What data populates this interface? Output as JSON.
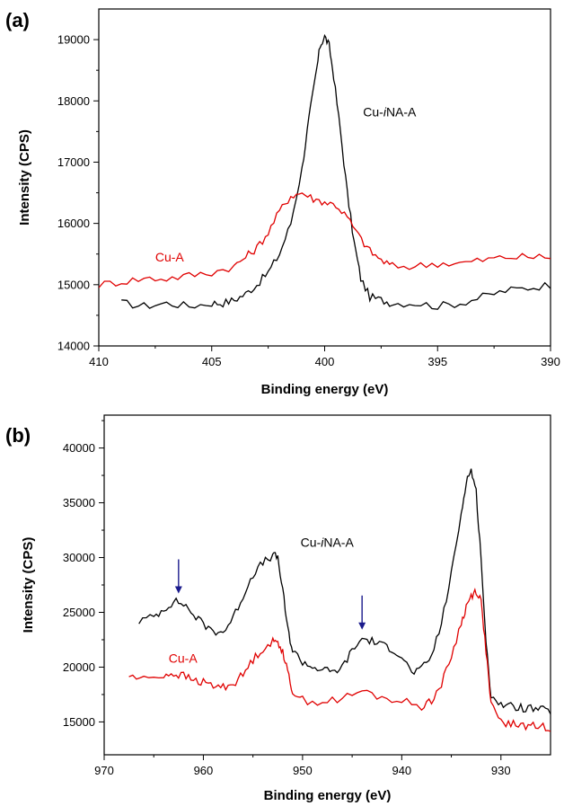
{
  "chart_data": [
    {
      "type": "line",
      "panel_label": "(a)",
      "xlabel": "Binding energy (eV)",
      "ylabel": "Intensity (CPS)",
      "xlim": [
        410,
        390
      ],
      "ylim": [
        14000,
        19500
      ],
      "x_reversed": true,
      "xticks": [
        410,
        405,
        400,
        395,
        390
      ],
      "yticks": [
        14000,
        15000,
        16000,
        17000,
        18000,
        19000
      ],
      "grid": false,
      "colors": {
        "Cu-iNA-A": "#000000",
        "Cu-A": "#e00000"
      },
      "annotations": [
        {
          "text": "Cu-iNA-A",
          "color": "#000000",
          "x": 398.3,
          "y": 17750
        },
        {
          "text": "Cu-A",
          "color": "#e00000",
          "x": 407.5,
          "y": 15380
        }
      ],
      "series": [
        {
          "name": "Cu-iNA-A",
          "x": [
            409,
            408,
            407,
            406,
            405,
            404.5,
            404,
            403.5,
            403,
            402.5,
            402,
            401.5,
            401,
            400.7,
            400.4,
            400.2,
            400,
            399.8,
            399.6,
            399.3,
            399,
            398.7,
            398.4,
            398,
            397.5,
            397,
            396,
            395,
            394,
            393,
            392,
            391,
            390
          ],
          "y": [
            14700,
            14650,
            14700,
            14650,
            14700,
            14700,
            14750,
            14850,
            15000,
            15200,
            15500,
            16000,
            16900,
            17700,
            18400,
            18900,
            19050,
            18900,
            18400,
            17500,
            16500,
            15700,
            15100,
            14800,
            14750,
            14700,
            14700,
            14650,
            14700,
            14800,
            14900,
            14950,
            15000
          ]
        },
        {
          "name": "Cu-A",
          "x": [
            410,
            409,
            408,
            407,
            406,
            405,
            404,
            403.5,
            403,
            402.5,
            402,
            401.5,
            401,
            400.5,
            400,
            399.5,
            399,
            398.5,
            398,
            397.5,
            397,
            396,
            395,
            394,
            393,
            392,
            391,
            390
          ],
          "y": [
            15000,
            15050,
            15100,
            15100,
            15150,
            15200,
            15300,
            15450,
            15600,
            15850,
            16200,
            16450,
            16500,
            16400,
            16350,
            16300,
            16100,
            15800,
            15550,
            15400,
            15300,
            15300,
            15350,
            15350,
            15400,
            15450,
            15450,
            15450
          ]
        }
      ]
    },
    {
      "type": "line",
      "panel_label": "(b)",
      "xlabel": "Binding energy (eV)",
      "ylabel": "Intensity (CPS)",
      "xlim": [
        970,
        925
      ],
      "ylim": [
        12000,
        43000
      ],
      "x_reversed": true,
      "xticks": [
        970,
        960,
        950,
        940,
        930
      ],
      "yticks": [
        15000,
        20000,
        25000,
        30000,
        35000,
        40000
      ],
      "grid": false,
      "colors": {
        "Cu-iNA-A": "#000000",
        "Cu-A": "#e00000",
        "arrow": "#1a1a8c"
      },
      "annotations": [
        {
          "text": "Cu-iNA-A",
          "color": "#000000",
          "x": 950.2,
          "y": 31000
        },
        {
          "text": "Cu-A",
          "color": "#e00000",
          "x": 963.5,
          "y": 20400
        }
      ],
      "arrows": [
        {
          "x": 962.5
        },
        {
          "x": 944
        }
      ],
      "series": [
        {
          "name": "Cu-iNA-A",
          "x": [
            966.5,
            965,
            964,
            963,
            962,
            961,
            960,
            959,
            958,
            957,
            956,
            955,
            954,
            953,
            952.5,
            952,
            951.5,
            951,
            950,
            949,
            948,
            947,
            946,
            945,
            944,
            943,
            942,
            941,
            940,
            939,
            938,
            937,
            936,
            935,
            934,
            933.5,
            933,
            932.5,
            932,
            931.5,
            931,
            930,
            929,
            928,
            927,
            926,
            925
          ],
          "y": [
            24200,
            24600,
            25300,
            26000,
            25800,
            24800,
            23900,
            23300,
            23200,
            24500,
            26500,
            28500,
            29500,
            30200,
            30000,
            27000,
            23500,
            21500,
            20500,
            20000,
            19800,
            19500,
            20000,
            21500,
            22600,
            22400,
            22000,
            21700,
            21000,
            19500,
            19800,
            21000,
            24000,
            28500,
            34000,
            37000,
            38000,
            36000,
            30000,
            22000,
            17500,
            16600,
            16400,
            16300,
            16200,
            16100,
            16000
          ]
        },
        {
          "name": "Cu-A",
          "x": [
            967.5,
            966,
            964,
            963,
            962,
            961,
            960,
            959,
            958,
            957,
            956,
            955,
            954,
            953,
            952.5,
            952,
            951.5,
            951,
            950,
            948,
            946,
            944,
            942,
            940,
            938,
            937,
            936,
            935,
            934,
            933.5,
            933,
            932.5,
            932,
            931.5,
            931,
            930,
            929,
            928,
            927,
            926,
            925
          ],
          "y": [
            19200,
            18900,
            19300,
            19400,
            19200,
            18800,
            18600,
            18300,
            18200,
            18500,
            19300,
            20700,
            21700,
            22300,
            22300,
            21500,
            19500,
            17800,
            17000,
            16800,
            17100,
            17800,
            17200,
            16900,
            16400,
            17000,
            18400,
            21000,
            24000,
            25500,
            26500,
            27000,
            26000,
            21500,
            16500,
            15000,
            14800,
            14700,
            14600,
            14600,
            14500
          ]
        }
      ]
    }
  ]
}
